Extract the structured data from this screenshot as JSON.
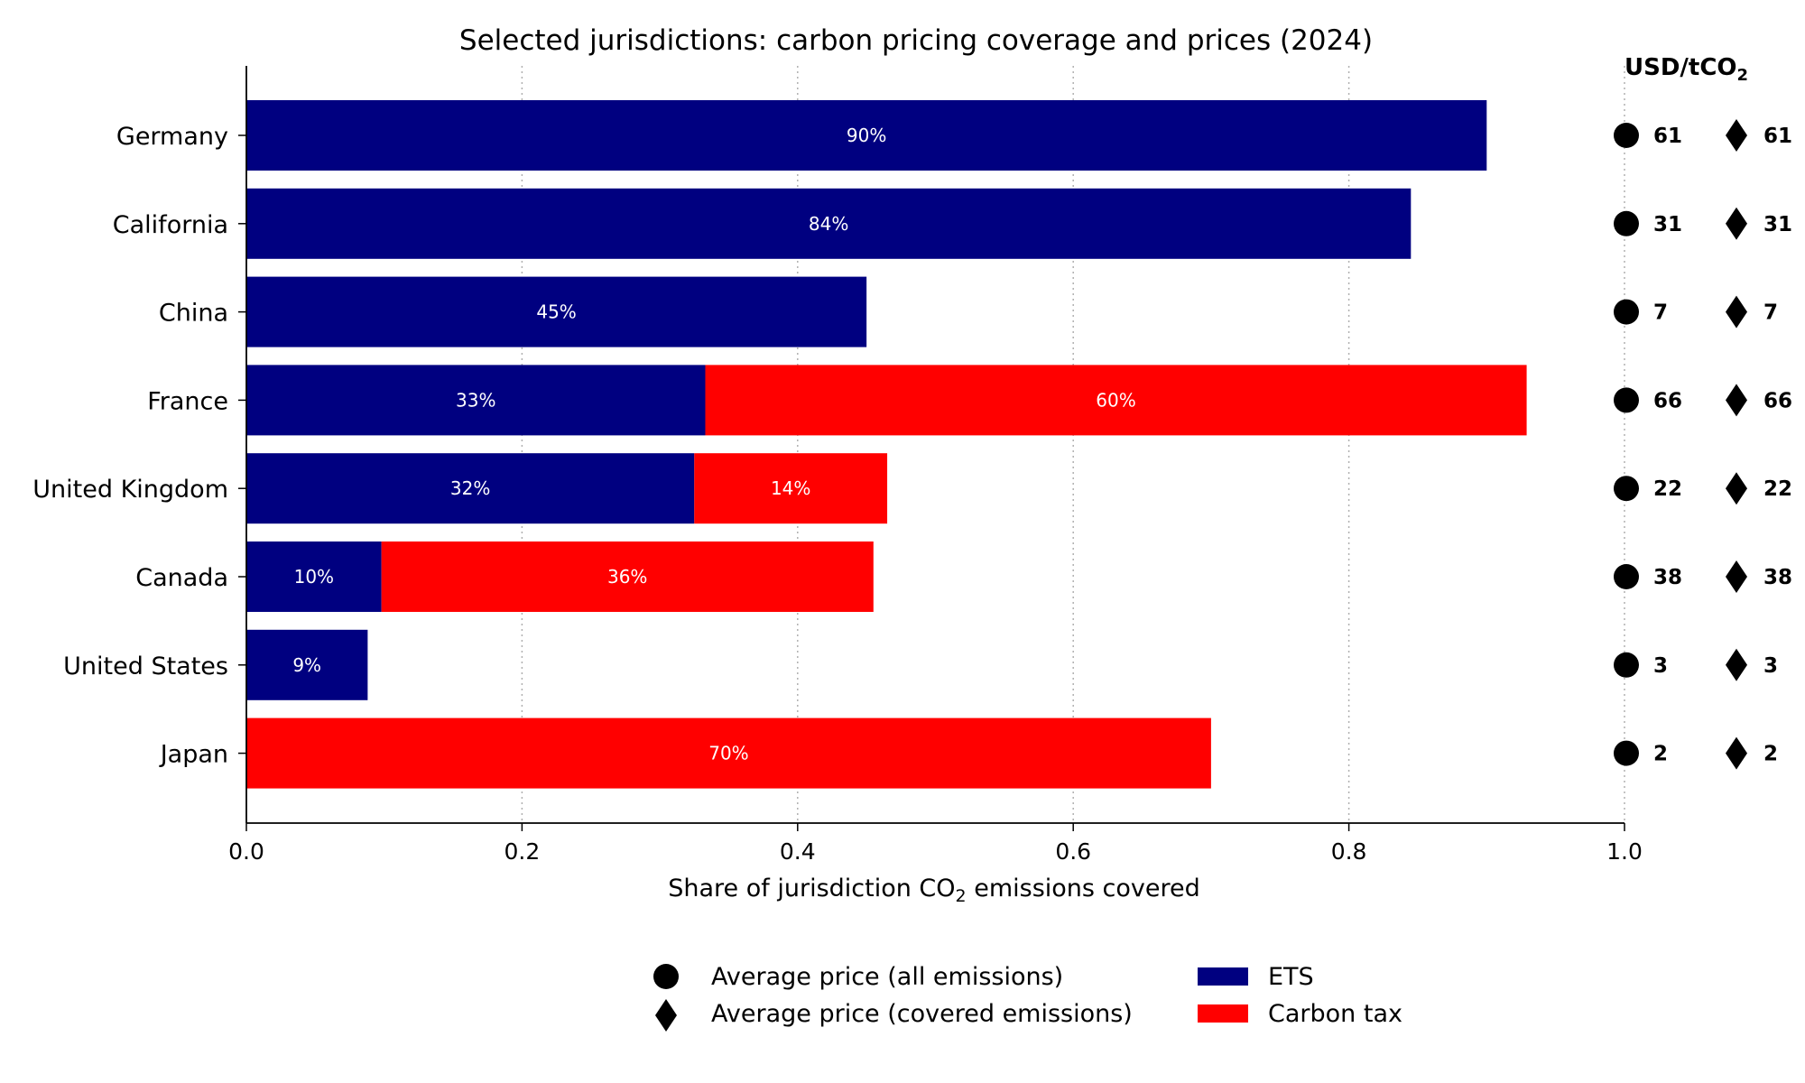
{
  "colors": {
    "ets": "#000080",
    "tax": "#ff0000",
    "marker": "#000000",
    "grid": "#b0b0b0",
    "text_on_bar": "#ffffff"
  },
  "chart_data": {
    "type": "bar",
    "orientation": "horizontal",
    "stacked": true,
    "title": "Selected jurisdictions: carbon pricing coverage and prices (2024)",
    "xlabel_prefix": "Share of jurisdiction CO",
    "xlabel_sub": "2",
    "xlabel_suffix": " emissions covered",
    "xlim": [
      0,
      1.0
    ],
    "xticks": [
      "0.0",
      "0.2",
      "0.4",
      "0.6",
      "0.8",
      "1.0"
    ],
    "xtick_values": [
      0,
      0.2,
      0.4,
      0.6,
      0.8,
      1.0
    ],
    "grid": "x dotted",
    "categories": [
      "Germany",
      "California",
      "China",
      "France",
      "United Kingdom",
      "Canada",
      "United States",
      "Japan"
    ],
    "series": [
      {
        "name": "ETS",
        "values": [
          0.9,
          0.845,
          0.45,
          0.333,
          0.325,
          0.098,
          0.088,
          0
        ],
        "labels": [
          "90%",
          "84%",
          "45%",
          "33%",
          "32%",
          "10%",
          "9%",
          ""
        ]
      },
      {
        "name": "Carbon tax",
        "values": [
          0,
          0,
          0,
          0.596,
          0.14,
          0.357,
          0,
          0.7
        ],
        "labels": [
          "",
          "",
          "",
          "60%",
          "14%",
          "36%",
          "",
          "70%"
        ]
      }
    ],
    "price_header_prefix": "USD/tCO",
    "price_header_sub": "2",
    "price_all": [
      "61",
      "31",
      "7",
      "66",
      "22",
      "38",
      "3",
      "2"
    ],
    "price_covered": [
      "61",
      "31",
      "7",
      "66",
      "22",
      "38",
      "3",
      "2"
    ],
    "legend": {
      "placement": "bottom-center",
      "items": [
        {
          "key": "circle",
          "label": "Average price (all emissions)"
        },
        {
          "key": "diamond",
          "label": "Average price (covered emissions)"
        },
        {
          "key": "ets",
          "label": "ETS"
        },
        {
          "key": "tax",
          "label": "Carbon tax"
        }
      ]
    }
  }
}
